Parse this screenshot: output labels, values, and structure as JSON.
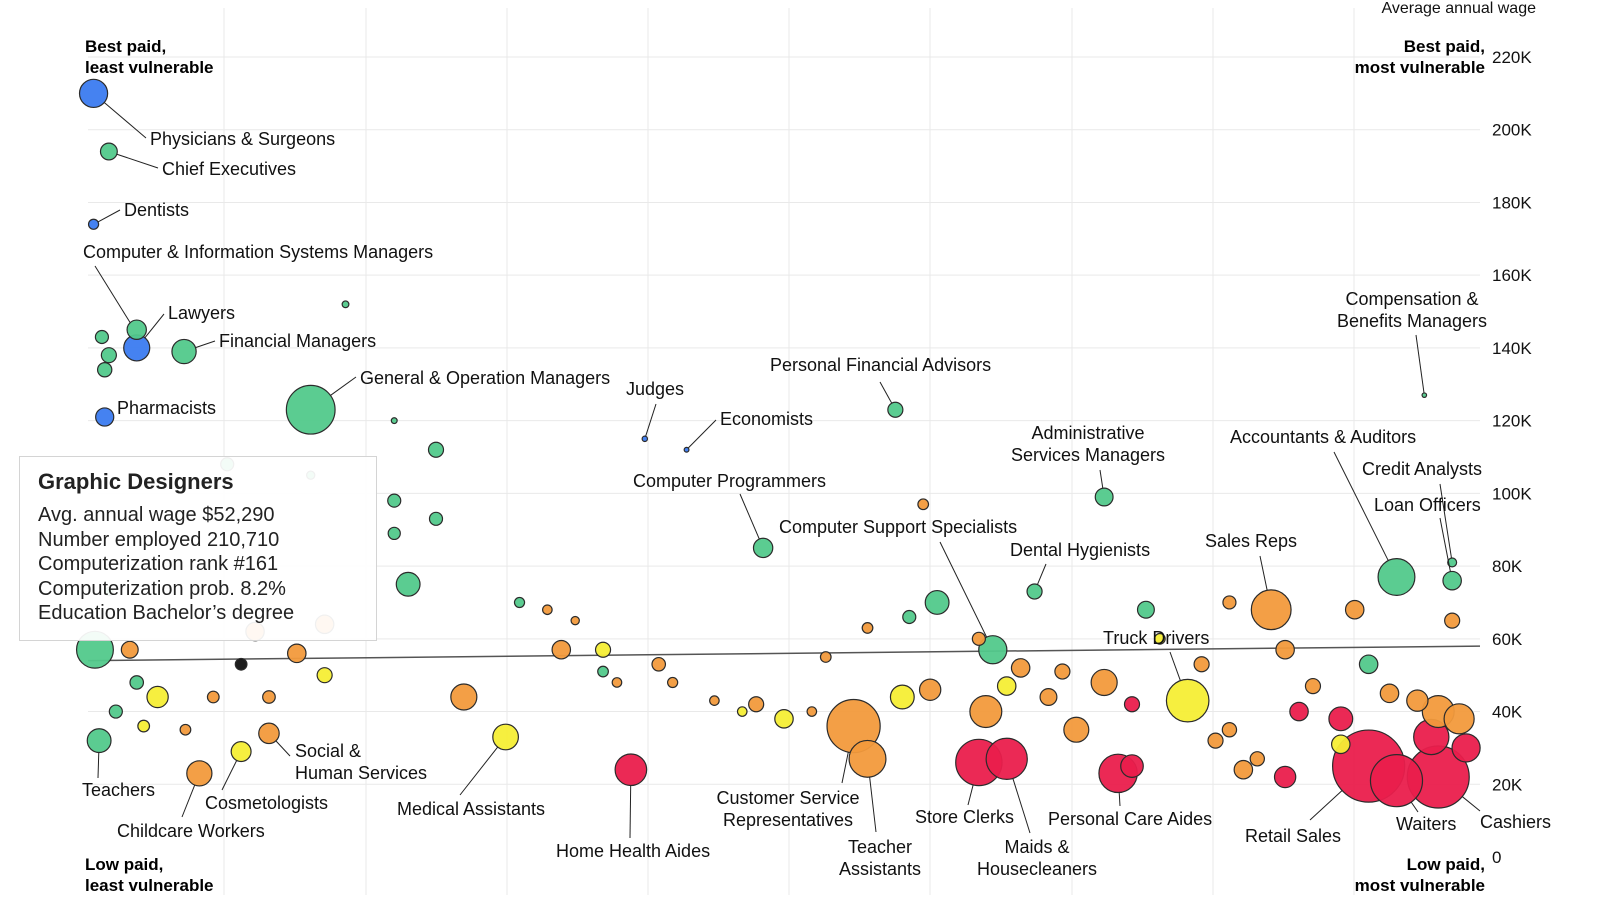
{
  "colors": {
    "blue": "#3b7bf0",
    "green": "#52c98b",
    "yellow": "#f6ee35",
    "orange": "#f29a3c",
    "red": "#ea1e4c",
    "black": "#111111"
  },
  "chart_data": {
    "type": "scatter",
    "ylabel": "Average annual wage",
    "y_ticks": [
      {
        "value": 0,
        "label": "0"
      },
      {
        "value": 20000,
        "label": "20K"
      },
      {
        "value": 40000,
        "label": "40K"
      },
      {
        "value": 60000,
        "label": "60K"
      },
      {
        "value": 80000,
        "label": "80K"
      },
      {
        "value": 100000,
        "label": "100K"
      },
      {
        "value": 120000,
        "label": "120K"
      },
      {
        "value": 140000,
        "label": "140K"
      },
      {
        "value": 160000,
        "label": "160K"
      },
      {
        "value": 180000,
        "label": "180K"
      },
      {
        "value": 200000,
        "label": "200K"
      },
      {
        "value": 220000,
        "label": "220K"
      }
    ],
    "ylim": [
      0,
      232000
    ],
    "x_axis": "computerization probability (0 to 1)",
    "xlim": [
      0,
      1
    ],
    "grid": true,
    "corners": {
      "top_left": [
        "Best paid,",
        "least vulnerable"
      ],
      "top_right": [
        "Best paid,",
        "most vulnerable"
      ],
      "bottom_left": [
        "Low paid,",
        "least vulnerable"
      ],
      "bottom_right": [
        "Low paid,",
        "most vulnerable"
      ]
    },
    "trend_line": {
      "x": [
        0,
        1
      ],
      "y": [
        54000,
        58000
      ]
    },
    "labeled_points": [
      {
        "name": "Physicians & Surgeons",
        "lines": [
          "Physicians & Surgeons"
        ],
        "x": 0.004,
        "y": 210000,
        "employment": 700000,
        "color": "blue"
      },
      {
        "name": "Chief Executives",
        "lines": [
          "Chief Executives"
        ],
        "x": 0.015,
        "y": 194000,
        "employment": 250000,
        "color": "green"
      },
      {
        "name": "Dentists",
        "lines": [
          "Dentists"
        ],
        "x": 0.004,
        "y": 174000,
        "employment": 90000,
        "color": "blue"
      },
      {
        "name": "Computer & Information Systems Managers",
        "lines": [
          "Computer & Information Systems Managers"
        ],
        "x": 0.035,
        "y": 145000,
        "employment": 330000,
        "color": "green"
      },
      {
        "name": "Lawyers",
        "lines": [
          "Lawyers"
        ],
        "x": 0.035,
        "y": 140000,
        "employment": 600000,
        "color": "blue"
      },
      {
        "name": "Financial Managers",
        "lines": [
          "Financial Managers"
        ],
        "x": 0.069,
        "y": 139000,
        "employment": 520000,
        "color": "green"
      },
      {
        "name": "General & Operation Managers",
        "lines": [
          "General & Operation Managers"
        ],
        "x": 0.16,
        "y": 123000,
        "employment": 2100000,
        "color": "green"
      },
      {
        "name": "Pharmacists",
        "lines": [
          "Pharmacists"
        ],
        "x": 0.012,
        "y": 121000,
        "employment": 290000,
        "color": "blue"
      },
      {
        "name": "Judges",
        "lines": [
          "Judges"
        ],
        "x": 0.4,
        "y": 115000,
        "employment": 25000,
        "color": "blue"
      },
      {
        "name": "Economists",
        "lines": [
          "Economists"
        ],
        "x": 0.43,
        "y": 112000,
        "employment": 20000,
        "color": "blue"
      },
      {
        "name": "Personal Financial Advisors",
        "lines": [
          "Personal Financial Advisors"
        ],
        "x": 0.58,
        "y": 123000,
        "employment": 200000,
        "color": "green"
      },
      {
        "name": "Compensation & Benefits Managers",
        "lines": [
          "Compensation &",
          "Benefits Managers"
        ],
        "x": 0.96,
        "y": 127000,
        "employment": 18000,
        "color": "green"
      },
      {
        "name": "Administrative Services Managers",
        "lines": [
          "Administrative",
          "Services Managers"
        ],
        "x": 0.73,
        "y": 99000,
        "employment": 280000,
        "color": "green"
      },
      {
        "name": "Accountants & Auditors",
        "lines": [
          "Accountants & Auditors"
        ],
        "x": 0.94,
        "y": 77000,
        "employment": 1200000,
        "color": "green"
      },
      {
        "name": "Credit Analysts",
        "lines": [
          "Credit Analysts"
        ],
        "x": 0.98,
        "y": 81000,
        "employment": 70000,
        "color": "green"
      },
      {
        "name": "Loan Officers",
        "lines": [
          "Loan Officers"
        ],
        "x": 0.98,
        "y": 76000,
        "employment": 300000,
        "color": "green"
      },
      {
        "name": "Computer Programmers",
        "lines": [
          "Computer Programmers"
        ],
        "x": 0.485,
        "y": 85000,
        "employment": 330000,
        "color": "green"
      },
      {
        "name": "Computer Support Specialists",
        "lines": [
          "Computer Support Specialists"
        ],
        "x": 0.65,
        "y": 57000,
        "employment": 700000,
        "color": "green"
      },
      {
        "name": "Dental Hygienists",
        "lines": [
          "Dental Hygienists"
        ],
        "x": 0.68,
        "y": 73000,
        "employment": 200000,
        "color": "green"
      },
      {
        "name": "Sales Reps",
        "lines": [
          "Sales Reps"
        ],
        "x": 0.85,
        "y": 68000,
        "employment": 1400000,
        "color": "orange"
      },
      {
        "name": "Truck Drivers",
        "lines": [
          "Truck Drivers"
        ],
        "x": 0.79,
        "y": 43000,
        "employment": 1600000,
        "color": "yellow"
      },
      {
        "name": "Teachers",
        "lines": [
          "Teachers"
        ],
        "x": 0.008,
        "y": 32000,
        "employment": 500000,
        "color": "green"
      },
      {
        "name": "Childcare Workers",
        "lines": [
          "Childcare Workers"
        ],
        "x": 0.08,
        "y": 23000,
        "employment": 560000,
        "color": "orange"
      },
      {
        "name": "Cosmetologists",
        "lines": [
          "Cosmetologists"
        ],
        "x": 0.11,
        "y": 29000,
        "employment": 350000,
        "color": "yellow"
      },
      {
        "name": "Social & Human Services",
        "lines": [
          "Social &",
          "Human Services"
        ],
        "x": 0.13,
        "y": 34000,
        "employment": 370000,
        "color": "orange"
      },
      {
        "name": "Medical Assistants",
        "lines": [
          "Medical Assistants"
        ],
        "x": 0.3,
        "y": 33000,
        "employment": 580000,
        "color": "yellow"
      },
      {
        "name": "Home Health Aides",
        "lines": [
          "Home Health Aides"
        ],
        "x": 0.39,
        "y": 24000,
        "employment": 880000,
        "color": "red"
      },
      {
        "name": "Customer Service Representatives",
        "lines": [
          "Customer Service",
          "Representatives"
        ],
        "x": 0.55,
        "y": 36000,
        "employment": 2500000,
        "color": "orange"
      },
      {
        "name": "Teacher Assistants",
        "lines": [
          "Teacher",
          "Assistants"
        ],
        "x": 0.56,
        "y": 27000,
        "employment": 1200000,
        "color": "orange"
      },
      {
        "name": "Store Clerks",
        "lines": [
          "Store Clerks"
        ],
        "x": 0.64,
        "y": 26000,
        "employment": 1900000,
        "color": "red"
      },
      {
        "name": "Maids & Housecleaners",
        "lines": [
          "Maids &",
          "Housecleaners"
        ],
        "x": 0.66,
        "y": 27000,
        "employment": 1500000,
        "color": "red"
      },
      {
        "name": "Personal Care Aides",
        "lines": [
          "Personal Care Aides"
        ],
        "x": 0.74,
        "y": 23000,
        "employment": 1300000,
        "color": "red"
      },
      {
        "name": "Retail Sales",
        "lines": [
          "Retail Sales"
        ],
        "x": 0.92,
        "y": 25000,
        "employment": 4600000,
        "color": "red"
      },
      {
        "name": "Waiters",
        "lines": [
          "Waiters"
        ],
        "x": 0.94,
        "y": 21000,
        "employment": 2400000,
        "color": "red"
      },
      {
        "name": "Cashiers",
        "lines": [
          "Cashiers"
        ],
        "x": 0.97,
        "y": 22000,
        "employment": 3400000,
        "color": "red"
      }
    ],
    "other_points": [
      {
        "x": 0.1,
        "y": 108000,
        "employment": 150000,
        "color": "green"
      },
      {
        "x": 0.16,
        "y": 105000,
        "employment": 60000,
        "color": "green"
      },
      {
        "x": 0.22,
        "y": 120000,
        "employment": 30000,
        "color": "green"
      },
      {
        "x": 0.25,
        "y": 112000,
        "employment": 200000,
        "color": "green"
      },
      {
        "x": 0.22,
        "y": 98000,
        "employment": 150000,
        "color": "green"
      },
      {
        "x": 0.25,
        "y": 93000,
        "employment": 150000,
        "color": "green"
      },
      {
        "x": 0.22,
        "y": 89000,
        "employment": 130000,
        "color": "green"
      },
      {
        "x": 0.23,
        "y": 75000,
        "employment": 500000,
        "color": "green"
      },
      {
        "x": 0.185,
        "y": 152000,
        "employment": 40000,
        "color": "green"
      },
      {
        "x": 0.015,
        "y": 138000,
        "employment": 200000,
        "color": "green"
      },
      {
        "x": 0.01,
        "y": 143000,
        "employment": 150000,
        "color": "green"
      },
      {
        "x": 0.17,
        "y": 64000,
        "employment": 300000,
        "color": "orange"
      },
      {
        "x": 0.12,
        "y": 62000,
        "employment": 300000,
        "color": "orange"
      },
      {
        "x": 0.15,
        "y": 56000,
        "employment": 300000,
        "color": "orange"
      },
      {
        "x": 0.27,
        "y": 44000,
        "employment": 600000,
        "color": "orange"
      },
      {
        "x": 0.05,
        "y": 44000,
        "employment": 400000,
        "color": "yellow"
      },
      {
        "x": 0.17,
        "y": 50000,
        "employment": 200000,
        "color": "yellow"
      },
      {
        "x": 0.035,
        "y": 48000,
        "employment": 160000,
        "color": "green"
      },
      {
        "x": 0.02,
        "y": 40000,
        "employment": 150000,
        "color": "green"
      },
      {
        "x": 0.09,
        "y": 44000,
        "employment": 120000,
        "color": "orange"
      },
      {
        "x": 0.13,
        "y": 44000,
        "employment": 140000,
        "color": "orange"
      },
      {
        "x": 0.04,
        "y": 36000,
        "employment": 120000,
        "color": "yellow"
      },
      {
        "x": 0.11,
        "y": 53000,
        "employment": 120000,
        "color": "black"
      },
      {
        "x": 0.31,
        "y": 70000,
        "employment": 90000,
        "color": "green"
      },
      {
        "x": 0.33,
        "y": 68000,
        "employment": 80000,
        "color": "orange"
      },
      {
        "x": 0.35,
        "y": 65000,
        "employment": 60000,
        "color": "orange"
      },
      {
        "x": 0.34,
        "y": 57000,
        "employment": 300000,
        "color": "orange"
      },
      {
        "x": 0.37,
        "y": 57000,
        "employment": 200000,
        "color": "yellow"
      },
      {
        "x": 0.37,
        "y": 51000,
        "employment": 100000,
        "color": "green"
      },
      {
        "x": 0.38,
        "y": 48000,
        "employment": 80000,
        "color": "orange"
      },
      {
        "x": 0.41,
        "y": 53000,
        "employment": 160000,
        "color": "orange"
      },
      {
        "x": 0.42,
        "y": 48000,
        "employment": 90000,
        "color": "orange"
      },
      {
        "x": 0.45,
        "y": 43000,
        "employment": 80000,
        "color": "orange"
      },
      {
        "x": 0.47,
        "y": 40000,
        "employment": 80000,
        "color": "yellow"
      },
      {
        "x": 0.48,
        "y": 42000,
        "employment": 200000,
        "color": "orange"
      },
      {
        "x": 0.52,
        "y": 40000,
        "employment": 80000,
        "color": "orange"
      },
      {
        "x": 0.5,
        "y": 38000,
        "employment": 300000,
        "color": "yellow"
      },
      {
        "x": 0.53,
        "y": 55000,
        "employment": 100000,
        "color": "orange"
      },
      {
        "x": 0.56,
        "y": 63000,
        "employment": 100000,
        "color": "orange"
      },
      {
        "x": 0.59,
        "y": 66000,
        "employment": 150000,
        "color": "green"
      },
      {
        "x": 0.6,
        "y": 97000,
        "employment": 100000,
        "color": "orange"
      },
      {
        "x": 0.61,
        "y": 70000,
        "employment": 500000,
        "color": "green"
      },
      {
        "x": 0.585,
        "y": 44000,
        "employment": 500000,
        "color": "yellow"
      },
      {
        "x": 0.605,
        "y": 46000,
        "employment": 400000,
        "color": "orange"
      },
      {
        "x": 0.645,
        "y": 40000,
        "employment": 900000,
        "color": "orange"
      },
      {
        "x": 0.64,
        "y": 60000,
        "employment": 150000,
        "color": "orange"
      },
      {
        "x": 0.66,
        "y": 47000,
        "employment": 300000,
        "color": "yellow"
      },
      {
        "x": 0.67,
        "y": 52000,
        "employment": 300000,
        "color": "orange"
      },
      {
        "x": 0.69,
        "y": 44000,
        "employment": 250000,
        "color": "orange"
      },
      {
        "x": 0.71,
        "y": 35000,
        "employment": 550000,
        "color": "orange"
      },
      {
        "x": 0.7,
        "y": 51000,
        "employment": 200000,
        "color": "orange"
      },
      {
        "x": 0.73,
        "y": 48000,
        "employment": 600000,
        "color": "orange"
      },
      {
        "x": 0.75,
        "y": 42000,
        "employment": 200000,
        "color": "red"
      },
      {
        "x": 0.76,
        "y": 68000,
        "employment": 250000,
        "color": "green"
      },
      {
        "x": 0.77,
        "y": 60000,
        "employment": 100000,
        "color": "yellow"
      },
      {
        "x": 0.75,
        "y": 25000,
        "employment": 450000,
        "color": "red"
      },
      {
        "x": 0.8,
        "y": 53000,
        "employment": 200000,
        "color": "orange"
      },
      {
        "x": 0.81,
        "y": 32000,
        "employment": 200000,
        "color": "orange"
      },
      {
        "x": 0.82,
        "y": 35000,
        "employment": 180000,
        "color": "orange"
      },
      {
        "x": 0.82,
        "y": 70000,
        "employment": 150000,
        "color": "orange"
      },
      {
        "x": 0.84,
        "y": 27000,
        "employment": 180000,
        "color": "orange"
      },
      {
        "x": 0.86,
        "y": 57000,
        "employment": 300000,
        "color": "orange"
      },
      {
        "x": 0.87,
        "y": 40000,
        "employment": 300000,
        "color": "red"
      },
      {
        "x": 0.88,
        "y": 47000,
        "employment": 200000,
        "color": "orange"
      },
      {
        "x": 0.9,
        "y": 31000,
        "employment": 300000,
        "color": "yellow"
      },
      {
        "x": 0.91,
        "y": 68000,
        "employment": 300000,
        "color": "orange"
      },
      {
        "x": 0.92,
        "y": 53000,
        "employment": 300000,
        "color": "green"
      },
      {
        "x": 0.935,
        "y": 45000,
        "employment": 300000,
        "color": "orange"
      },
      {
        "x": 0.955,
        "y": 43000,
        "employment": 400000,
        "color": "orange"
      },
      {
        "x": 0.97,
        "y": 40000,
        "employment": 900000,
        "color": "orange"
      },
      {
        "x": 0.98,
        "y": 65000,
        "employment": 200000,
        "color": "orange"
      },
      {
        "x": 0.985,
        "y": 38000,
        "employment": 800000,
        "color": "orange"
      },
      {
        "x": 0.99,
        "y": 30000,
        "employment": 700000,
        "color": "red"
      },
      {
        "x": 0.965,
        "y": 33000,
        "employment": 1100000,
        "color": "red"
      },
      {
        "x": 0.9,
        "y": 38000,
        "employment": 500000,
        "color": "red"
      },
      {
        "x": 0.86,
        "y": 22000,
        "employment": 400000,
        "color": "red"
      },
      {
        "x": 0.83,
        "y": 24000,
        "employment": 300000,
        "color": "orange"
      },
      {
        "x": 0.005,
        "y": 57000,
        "employment": 1200000,
        "color": "green"
      },
      {
        "x": 0.03,
        "y": 57000,
        "employment": 250000,
        "color": "orange"
      },
      {
        "x": 0.07,
        "y": 35000,
        "employment": 100000,
        "color": "orange"
      },
      {
        "x": 0.015,
        "y": 73000,
        "employment": 60000,
        "color": "green"
      },
      {
        "x": 0.012,
        "y": 134000,
        "employment": 180000,
        "color": "green"
      }
    ]
  },
  "tooltip": {
    "title": "Graphic Designers",
    "rows": [
      "Avg. annual wage $52,290",
      "Number employed 210,710",
      "Computerization rank #161",
      "Computerization prob. 8.2%",
      "Education Bachelor’s degree"
    ]
  }
}
